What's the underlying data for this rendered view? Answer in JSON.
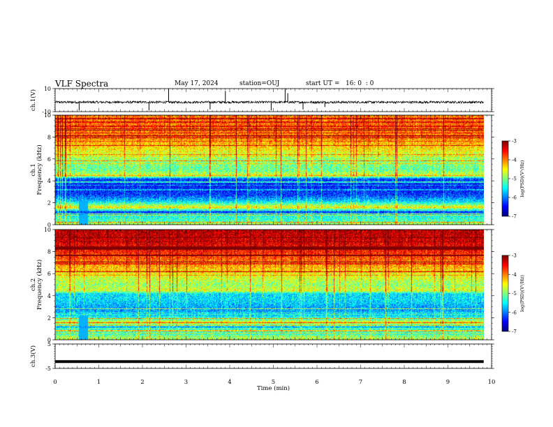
{
  "header": {
    "title": "VLF Spectra",
    "date": "May 17, 2024",
    "station": "station=OUJ",
    "start": "start UT =   16: 0  : 0"
  },
  "chart_data": [
    {
      "type": "line",
      "ylabel": "ch.1(V)",
      "ylim": [
        -10,
        10
      ],
      "yticks": [
        -10,
        10
      ],
      "x": [
        0,
        9.82
      ],
      "baseline": -1.8,
      "noise_amplitude": 1.0,
      "spikes": [
        {
          "x": 2.6,
          "y": 10
        },
        {
          "x": 5.27,
          "y": 10
        },
        {
          "x": 3.9,
          "y": 8
        },
        {
          "x": 5.33,
          "y": 6
        },
        {
          "x": 0.55,
          "y": -9
        },
        {
          "x": 2.15,
          "y": -9
        },
        {
          "x": 3.55,
          "y": -8
        },
        {
          "x": 4.95,
          "y": -9
        },
        {
          "x": 5.68,
          "y": -8
        },
        {
          "x": 6.18,
          "y": -6
        }
      ]
    },
    {
      "type": "heatmap",
      "ylabel": "ch.1\nFrequency (kHz)",
      "ylim": [
        0,
        10
      ],
      "yticks": [
        0,
        2,
        4,
        6,
        8,
        10
      ],
      "xlim": [
        0,
        9.82
      ],
      "colorbar": {
        "label": "log(PSD)(V²/Hz)",
        "range": [
          -7,
          -3
        ],
        "ticks": [
          "-3",
          "-4",
          "-5",
          "-6",
          "-7"
        ]
      },
      "band_profile": [
        [
          0,
          -4.6
        ],
        [
          0.3,
          -5.2
        ],
        [
          0.8,
          -5.4
        ],
        [
          1.2,
          -6.3
        ],
        [
          1.6,
          -4.4
        ],
        [
          1.8,
          -4.9
        ],
        [
          2.2,
          -5.7
        ],
        [
          2.8,
          -6.3
        ],
        [
          3.6,
          -6.4
        ],
        [
          4.2,
          -6.2
        ],
        [
          4.5,
          -4.6
        ],
        [
          5.0,
          -5.1
        ],
        [
          6.0,
          -4.9
        ],
        [
          7.0,
          -4.4
        ],
        [
          8.0,
          -4.0
        ],
        [
          9.0,
          -3.9
        ],
        [
          10,
          -4.0
        ]
      ]
    },
    {
      "type": "heatmap",
      "ylabel": "ch.2\nFrequency (kHz)",
      "ylim": [
        0,
        10
      ],
      "yticks": [
        0,
        2,
        4,
        6,
        8,
        10
      ],
      "xlim": [
        0,
        9.82
      ],
      "colorbar": {
        "label": "log(PSD)(V²/Hz)",
        "range": [
          -7,
          -3
        ],
        "ticks": [
          "-3",
          "-4",
          "-5",
          "-6",
          "-7"
        ]
      },
      "band_profile": [
        [
          0,
          -4.8
        ],
        [
          0.3,
          -5.3
        ],
        [
          0.8,
          -5.3
        ],
        [
          1.2,
          -5.8
        ],
        [
          1.6,
          -4.4
        ],
        [
          1.8,
          -5.0
        ],
        [
          2.2,
          -5.6
        ],
        [
          2.8,
          -5.9
        ],
        [
          3.6,
          -5.6
        ],
        [
          4.2,
          -5.6
        ],
        [
          4.5,
          -4.6
        ],
        [
          5.0,
          -4.9
        ],
        [
          6.0,
          -4.5
        ],
        [
          7.0,
          -4.0
        ],
        [
          8.0,
          -3.6
        ],
        [
          9.0,
          -3.3
        ],
        [
          10,
          -3.2
        ]
      ]
    },
    {
      "type": "line",
      "ylabel": "ch.3(V)",
      "ylim": [
        -5,
        5
      ],
      "yticks": [
        -5,
        5
      ],
      "x": [
        0,
        9.82
      ],
      "y": [
        -2.2,
        -2.2
      ]
    }
  ],
  "xaxis": {
    "label": "Time (min)",
    "xlim": [
      0,
      10
    ],
    "ticks": [
      "0",
      "1",
      "2",
      "3",
      "4",
      "5",
      "6",
      "7",
      "8",
      "9",
      "10"
    ]
  }
}
